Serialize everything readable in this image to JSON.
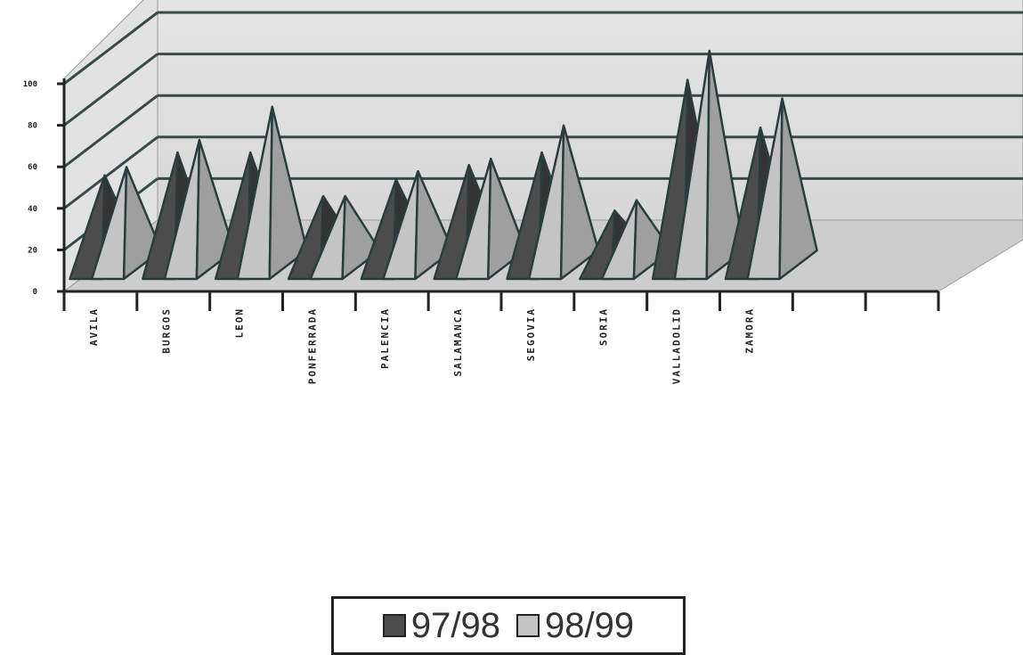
{
  "chart_data": {
    "type": "bar",
    "style": "3d-pyramid",
    "categories": [
      "AVILA",
      "BURGOS",
      "LEON",
      "PONFERRADA",
      "PALENCIA",
      "SALAMANCA",
      "SEGOVIA",
      "SORIA",
      "VALLADOLID",
      "ZAMORA"
    ],
    "series": [
      {
        "name": "97/98",
        "values": [
          43,
          54,
          54,
          33,
          41,
          48,
          54,
          26,
          89,
          66
        ],
        "color": "#4c4c4c"
      },
      {
        "name": "98/99",
        "values": [
          47,
          60,
          76,
          33,
          45,
          51,
          67,
          31,
          103,
          80
        ],
        "color": "#c4c4c4"
      }
    ],
    "y_ticks": [
      "0",
      "20",
      "40",
      "60",
      "80",
      "100"
    ],
    "ylim": [
      0,
      100
    ],
    "grid": true,
    "legend_position": "bottom-center",
    "title": "",
    "xlabel": "",
    "ylabel": ""
  }
}
